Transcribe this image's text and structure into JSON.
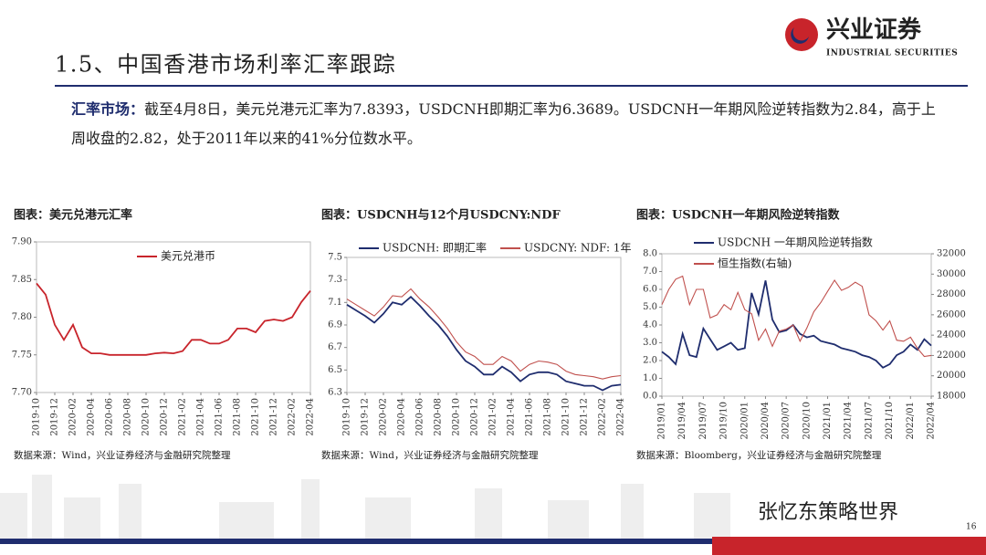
{
  "header": {
    "title": "1.5、中国香港市场利率汇率跟踪",
    "logo": "兴业证券",
    "logo_en": "INDUSTRIAL SECURITIES"
  },
  "text": {
    "lead": "汇率市场：",
    "body": "截至4月8日，美元兑港元汇率为7.8393，USDCNH即期汇率为6.3689。USDCNH一年期风险逆转指数为2.84，高于上周收盘的2.82，处于2011年以来的41%分位数水平。"
  },
  "footer": {
    "watermark": "张忆东策略世界",
    "page": "16"
  },
  "chart_data": [
    {
      "type": "line",
      "title": "图表：美元兑港元汇率",
      "source": "数据来源：Wind，兴业证券经济与金融研究院整理",
      "categories": [
        "2019-10",
        null,
        "2019-12",
        null,
        "2020-02",
        null,
        "2020-04",
        null,
        "2020-06",
        null,
        "2020-08",
        null,
        "2020-10",
        null,
        "2020-12",
        null,
        "2021-02",
        null,
        "2021-04",
        null,
        "2021-06",
        null,
        "2021-08",
        null,
        "2021-10",
        null,
        "2021-12",
        null,
        "2022-02",
        null,
        "2022-04"
      ],
      "series": [
        {
          "name": "美元兑港币",
          "color": "#c8242b",
          "values": [
            7.845,
            7.83,
            7.79,
            7.77,
            7.79,
            7.76,
            7.752,
            7.752,
            7.75,
            7.75,
            7.75,
            7.75,
            7.75,
            7.752,
            7.753,
            7.752,
            7.755,
            7.77,
            7.77,
            7.765,
            7.765,
            7.77,
            7.785,
            7.785,
            7.78,
            7.795,
            7.797,
            7.795,
            7.8,
            7.82,
            7.835
          ]
        }
      ],
      "ylim": [
        7.7,
        7.9
      ],
      "yticks": [
        {
          "value": 7.7,
          "label": "7.70"
        },
        7.75,
        {
          "value": 7.8,
          "label": "7.80"
        },
        7.85,
        {
          "value": 7.9,
          "label": "7.90"
        }
      ]
    },
    {
      "type": "line",
      "title": "图表：USDCNH与12个月USDCNY:NDF",
      "source": "数据来源：Wind，兴业证券经济与金融研究院整理",
      "categories": [
        "2019-10",
        null,
        "2019-12",
        null,
        "2020-02",
        null,
        "2020-04",
        null,
        "2020-06",
        null,
        "2020-08",
        null,
        "2020-10",
        null,
        "2020-12",
        null,
        "2021-02",
        null,
        "2021-04",
        null,
        "2021-06",
        null,
        "2021-08",
        null,
        "2021-10",
        null,
        "2021-12",
        null,
        "2022-02",
        null,
        "2022-04"
      ],
      "series": [
        {
          "name": "USDCNH: 即期汇率",
          "color": "#1f2d6e",
          "values": [
            7.08,
            7.03,
            6.98,
            6.92,
            7.0,
            7.1,
            7.08,
            7.15,
            7.07,
            6.98,
            6.9,
            6.8,
            6.68,
            6.58,
            6.53,
            6.46,
            6.46,
            6.53,
            6.48,
            6.4,
            6.46,
            6.48,
            6.48,
            6.46,
            6.4,
            6.38,
            6.36,
            6.36,
            6.32,
            6.36,
            6.37
          ]
        },
        {
          "name": "USDCNY: NDF: 1年",
          "color": "#c0504d",
          "values": [
            7.13,
            7.08,
            7.03,
            6.98,
            7.06,
            7.16,
            7.15,
            7.22,
            7.13,
            7.06,
            6.97,
            6.87,
            6.75,
            6.66,
            6.62,
            6.55,
            6.55,
            6.62,
            6.58,
            6.49,
            6.55,
            6.58,
            6.57,
            6.55,
            6.49,
            6.46,
            6.45,
            6.44,
            6.42,
            6.44,
            6.45
          ]
        }
      ],
      "ylim": [
        6.3,
        7.5
      ],
      "yticks": [
        6.3,
        6.5,
        6.7,
        6.9,
        7.1,
        7.3,
        7.5
      ]
    },
    {
      "type": "line",
      "title": "图表：USDCNH一年期风险逆转指数",
      "source": "数据来源：Bloomberg，兴业证券经济与金融研究院整理",
      "categories": [
        "2019/01",
        null,
        null,
        "2019/04",
        null,
        null,
        "2019/07",
        null,
        null,
        "2019/10",
        null,
        null,
        "2020/01",
        null,
        null,
        "2020/04",
        null,
        null,
        "2020/07",
        null,
        null,
        "2020/10",
        null,
        null,
        "2021/01",
        null,
        null,
        "2021/04",
        null,
        null,
        "2021/07",
        null,
        null,
        "2021/10",
        null,
        null,
        "2022/01",
        null,
        null,
        "2022/04"
      ],
      "series": [
        {
          "name": "USDCNH 一年期风险逆转指数",
          "color": "#1f2d6e",
          "values": [
            2.5,
            2.2,
            1.8,
            3.5,
            2.3,
            2.2,
            3.8,
            3.2,
            2.6,
            2.8,
            3.0,
            2.6,
            2.7,
            5.8,
            4.6,
            6.5,
            4.3,
            3.6,
            3.7,
            4.0,
            3.5,
            3.3,
            3.4,
            3.1,
            3.0,
            2.9,
            2.7,
            2.6,
            2.5,
            2.3,
            2.2,
            2.0,
            1.6,
            1.8,
            2.3,
            2.5,
            2.9,
            2.6,
            3.2,
            2.84
          ]
        },
        {
          "name": "恒生指数(右轴)",
          "color": "#c0504d",
          "axis": "y2",
          "values": [
            27000,
            28500,
            29500,
            29800,
            27000,
            28500,
            28500,
            25700,
            26000,
            27000,
            26500,
            28200,
            26500,
            26100,
            23500,
            24600,
            22900,
            24400,
            24600,
            25000,
            23400,
            24700,
            26300,
            27200,
            28300,
            29400,
            28400,
            28700,
            29200,
            28800,
            26000,
            25400,
            24500,
            25400,
            23500,
            23400,
            23800,
            22700,
            21900,
            22000
          ]
        }
      ],
      "ylim": [
        0,
        8
      ],
      "yticks": [
        {
          "value": 0,
          "label": "0.0"
        },
        {
          "value": 1,
          "label": "1.0"
        },
        {
          "value": 2,
          "label": "2.0"
        },
        {
          "value": 3,
          "label": "3.0"
        },
        {
          "value": 4,
          "label": "4.0"
        },
        {
          "value": 5,
          "label": "5.0"
        },
        {
          "value": 6,
          "label": "6.0"
        },
        {
          "value": 7,
          "label": "7.0"
        },
        {
          "value": 8,
          "label": "8.0"
        }
      ],
      "y2lim": [
        18000,
        32000
      ],
      "y2ticks": [
        18000,
        20000,
        22000,
        24000,
        26000,
        28000,
        30000,
        32000
      ]
    }
  ]
}
